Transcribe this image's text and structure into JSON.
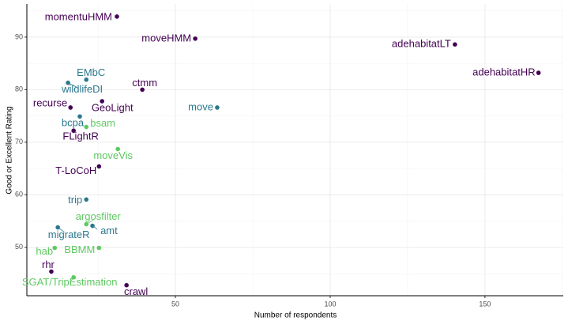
{
  "chart_data": {
    "type": "scatter",
    "x_label": "Number of respondents",
    "y_label": "Good or Excellent Rating",
    "labels": [
      "momentuHMM",
      "moveHMM",
      "adehabitatLT",
      "adehabitatHR",
      "EMbC",
      "wildlifeDI",
      "ctmm",
      "recurse",
      "GeoLight",
      "move",
      "bcpa",
      "bsam",
      "FLightR",
      "moveVis",
      "T-LoCoH",
      "trip",
      "argosfilter",
      "amt",
      "migrateR",
      "BBMM",
      "hab",
      "rhr",
      "SGAT/TripEstimation",
      "crawl"
    ],
    "x": [
      31.1,
      56.4,
      140.3,
      167.3,
      21.2,
      15.3,
      39.3,
      16.1,
      26.3,
      63.5,
      19.1,
      21.2,
      17.1,
      31.4,
      25.3,
      21.2,
      21.2,
      23.2,
      12.0,
      25.3,
      11.0,
      9.9,
      17.1,
      34.2
    ],
    "values": [
      93.9,
      89.7,
      88.6,
      83.2,
      81.9,
      81.3,
      80.0,
      76.6,
      77.8,
      76.6,
      74.9,
      72.9,
      72.2,
      68.7,
      65.4,
      59.1,
      54.4,
      54.1,
      53.8,
      49.9,
      49.9,
      45.4,
      44.3,
      42.8
    ],
    "colors": [
      "#440154",
      "#440154",
      "#440154",
      "#440154",
      "#2a788e",
      "#2a788e",
      "#440154",
      "#440154",
      "#440154",
      "#2a788e",
      "#2a788e",
      "#5ec962",
      "#440154",
      "#5ec962",
      "#440154",
      "#2a788e",
      "#5ec962",
      "#2a788e",
      "#2a788e",
      "#5ec962",
      "#5ec962",
      "#440154",
      "#5ec962",
      "#440154"
    ],
    "xlim": [
      2,
      175.3
    ],
    "ylim": [
      40.8,
      96.3
    ],
    "xticks": [
      50,
      100,
      150
    ],
    "yticks": [
      50,
      60,
      70,
      80,
      90
    ],
    "grid": true
  }
}
